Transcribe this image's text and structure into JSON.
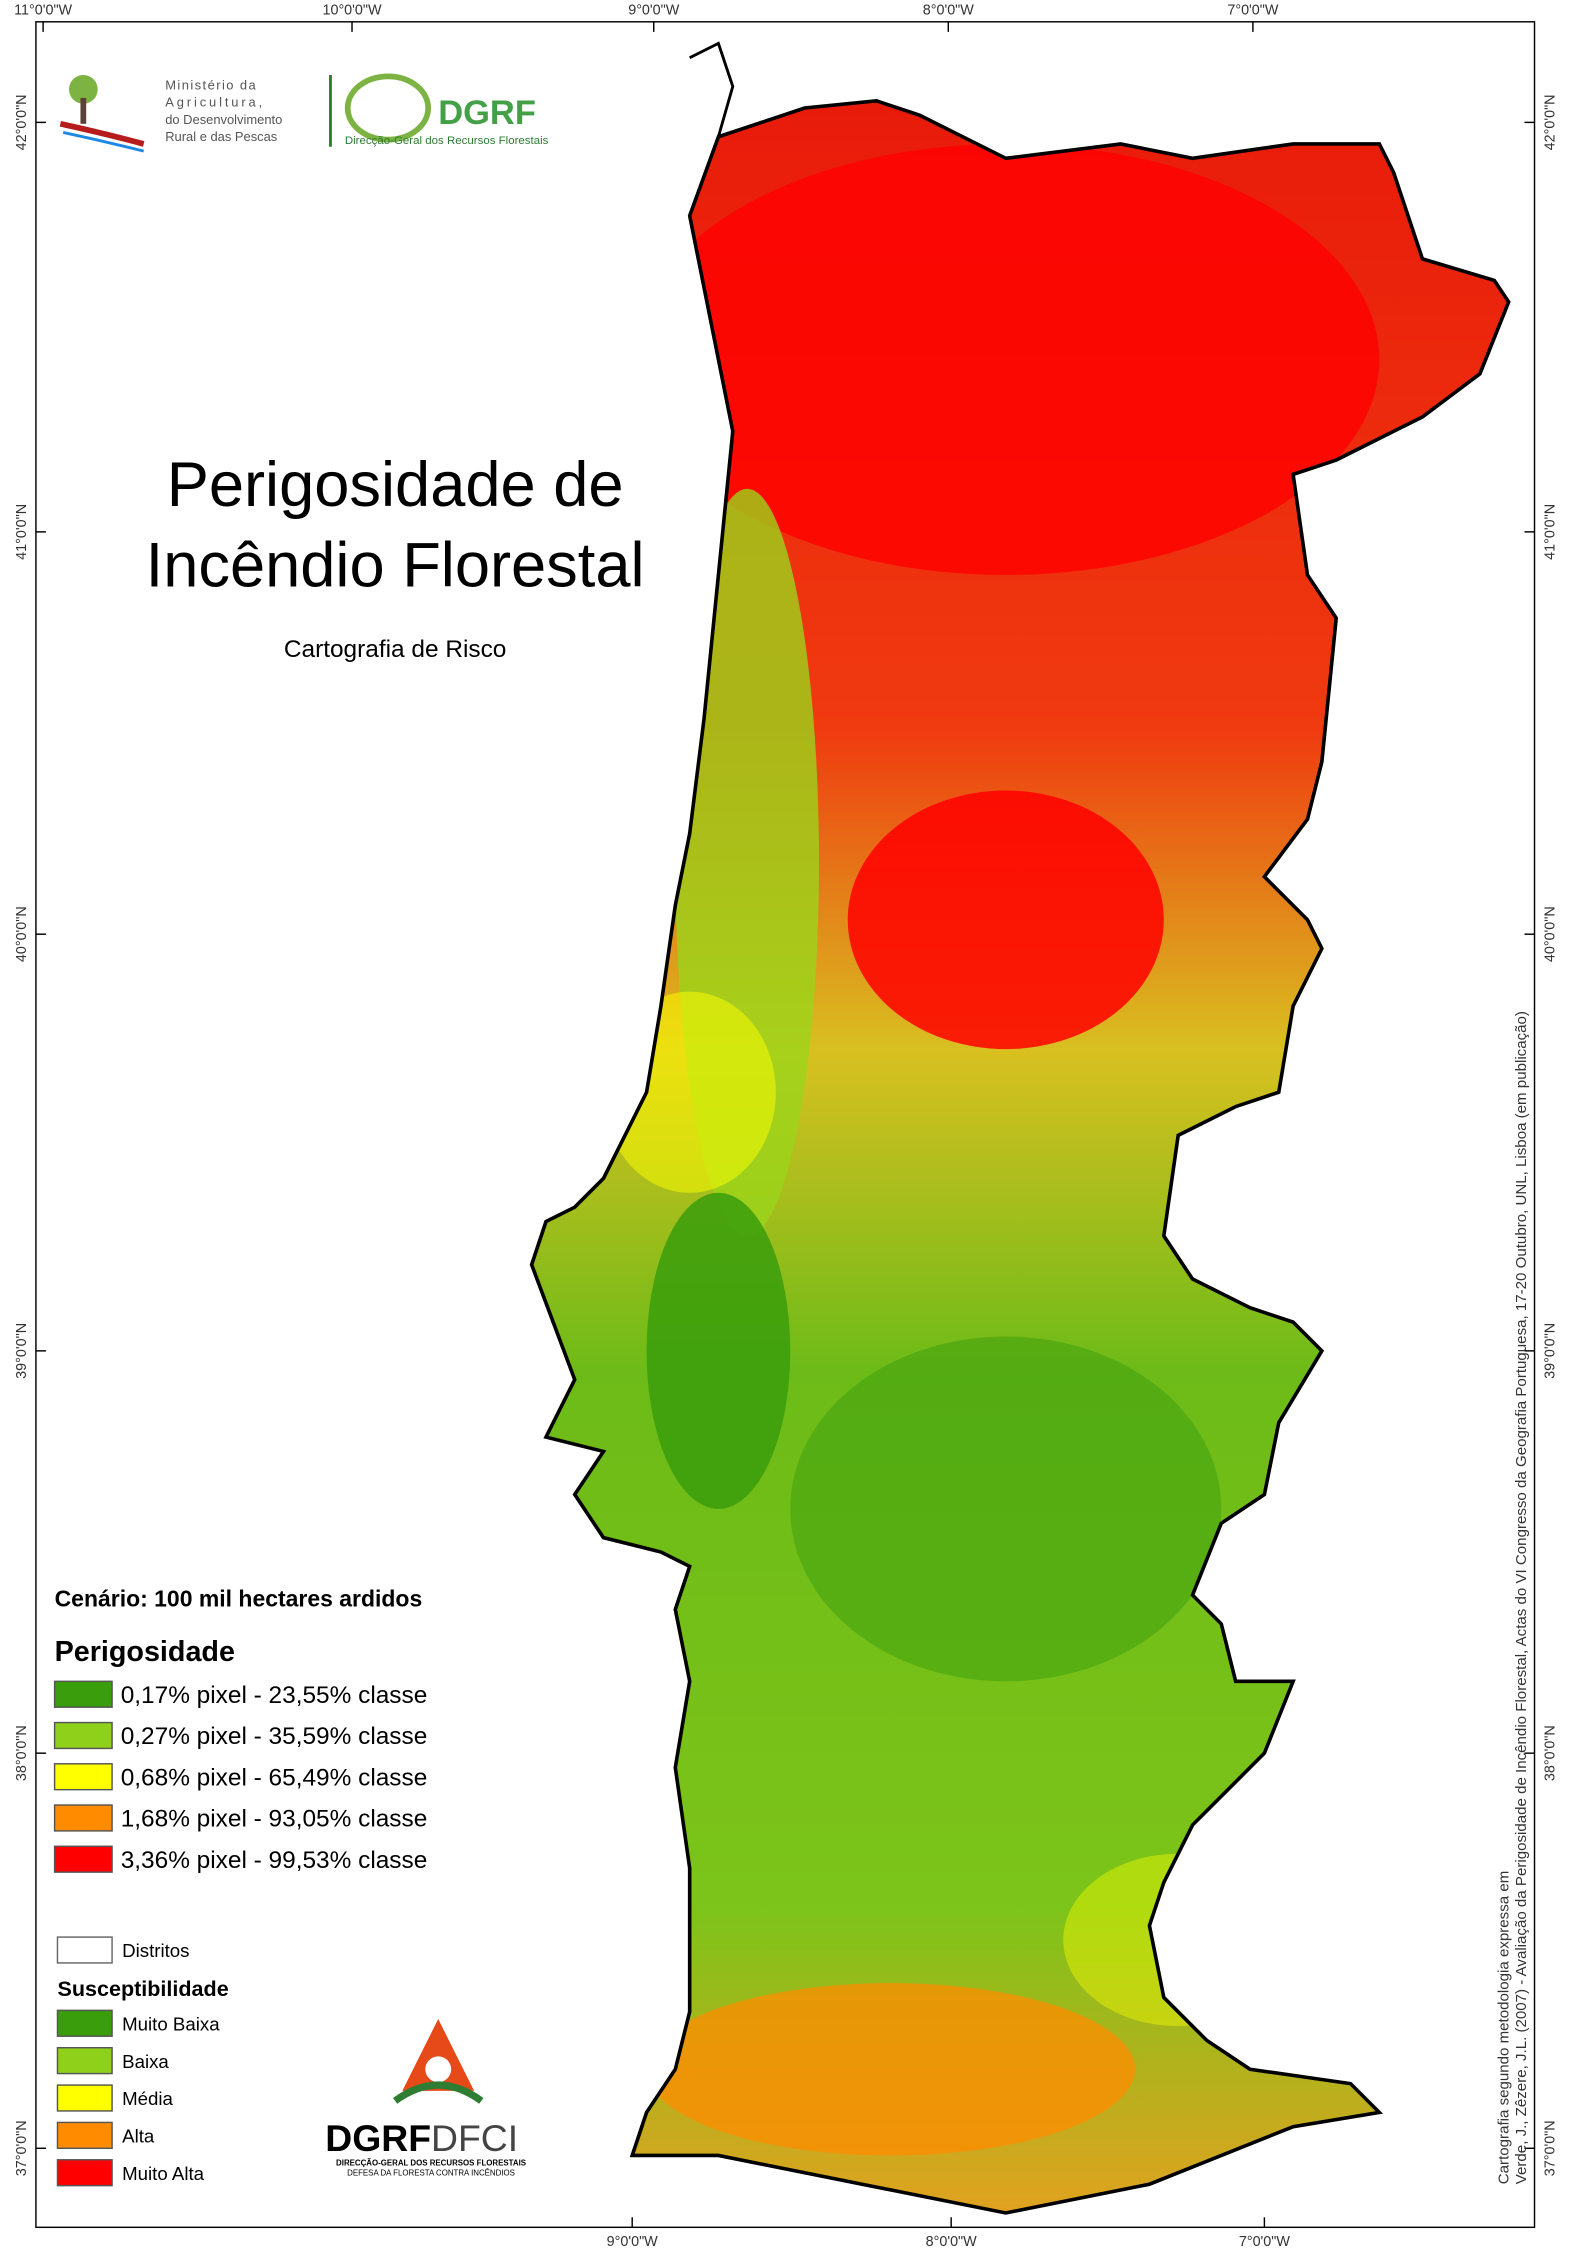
{
  "logos": {
    "ministry": [
      "Ministério da",
      "Agricultura,",
      "do Desenvolvimento",
      "Rural e das Pescas"
    ],
    "dgrf": "DGRF",
    "dgrf_subtitle": "Direcção-Geral dos Recursos Florestais",
    "dfci": {
      "left": "DGRF",
      "right": "DFCI",
      "line1": "DIRECÇÃO-GERAL DOS RECURSOS FLORESTAIS",
      "line2": "DEFESA DA FLORESTA CONTRA INCÊNDIOS"
    }
  },
  "title": [
    "Perigosidade de",
    "Incêndio Florestal"
  ],
  "subtitle": "Cartografia de Risco",
  "graticule": {
    "top": [
      "11°0'0\"W",
      "10°0'0\"W",
      "9°0'0\"W",
      "8°0'0\"W",
      "7°0'0\"W"
    ],
    "bottom": [
      "9°0'0\"W",
      "8°0'0\"W",
      "7°0'0\"W"
    ],
    "left": [
      "42°0'0\"N",
      "41°0'0\"N",
      "40°0'0\"N",
      "39°0'0\"N",
      "38°0'0\"N",
      "37°0'0\"N"
    ],
    "right": [
      "42°0'0\"N",
      "41°0'0\"N",
      "40°0'0\"N",
      "39°0'0\"N",
      "38°0'0\"N",
      "37°0'0\"N"
    ]
  },
  "scenario": "Cenário: 100 mil hectares ardidos",
  "hazard_legend": {
    "title": "Perigosidade",
    "items": [
      {
        "label": "0,17% pixel - 23,55% classe",
        "color": "#3a9e0c"
      },
      {
        "label": "0,27% pixel - 35,59% classe",
        "color": "#8fd11a"
      },
      {
        "label": "0,68% pixel - 65,49% classe",
        "color": "#ffff00"
      },
      {
        "label": "1,68% pixel - 93,05% classe",
        "color": "#ff8c00"
      },
      {
        "label": "3,36% pixel - 99,53% classe",
        "color": "#ff0000"
      }
    ]
  },
  "districts": "Distritos",
  "susceptibility_legend": {
    "title": "Susceptibilidade",
    "items": [
      {
        "label": "Muito Baixa",
        "color": "#3a9e0c"
      },
      {
        "label": "Baixa",
        "color": "#8fd11a"
      },
      {
        "label": "Média",
        "color": "#ffff00"
      },
      {
        "label": "Alta",
        "color": "#ff8c00"
      },
      {
        "label": "Muito Alta",
        "color": "#ff0000"
      }
    ]
  },
  "credit": [
    "Cartografia segundo metodologia expressa em",
    "Verde, J., Zêzere, J.L. (2007) - Avaliação da Perigosidade de Incêndio Florestal, Actas do VI Congresso da Geografia Portuguesa, 17-20 Outubro, UNL, Lisboa (em publicação)"
  ]
}
